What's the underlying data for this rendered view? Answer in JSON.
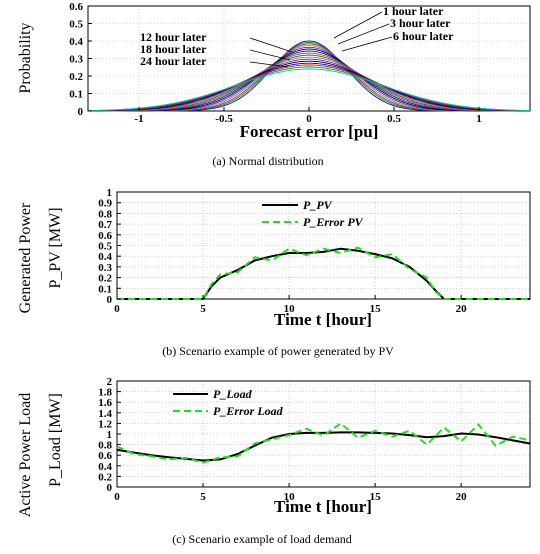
{
  "chart_data": [
    {
      "id": "a",
      "type": "line",
      "caption": "(a)  Normal distribution",
      "xlabel": "Forecast error [pu]",
      "ylabel": "Probability",
      "xlim": [
        -1.3,
        1.3
      ],
      "ylim": [
        0,
        0.6
      ],
      "xticks": [
        -1,
        -0.5,
        0,
        0.5,
        1
      ],
      "xtick_labels": [
        "-1",
        "-0.5",
        "0",
        "0.5",
        "1"
      ],
      "yticks": [
        0,
        0.1,
        0.2,
        0.3,
        0.4,
        0.5,
        0.6
      ],
      "ytick_labels": [
        "0",
        "0.1",
        "0.2",
        "0.3",
        "0.4",
        "0.5",
        "0.6"
      ],
      "series": [
        {
          "name": "1 hour later",
          "sigma": 0.1,
          "color": "#0000ff"
        },
        {
          "name": "",
          "sigma": 0.105,
          "color": "#00a000"
        },
        {
          "name": "3 hour later",
          "sigma": 0.11,
          "color": "#ff0000"
        },
        {
          "name": "",
          "sigma": 0.116,
          "color": "#00bfbf"
        },
        {
          "name": "",
          "sigma": 0.122,
          "color": "#bf00bf"
        },
        {
          "name": "6 hour later",
          "sigma": 0.128,
          "color": "#000000"
        },
        {
          "name": "",
          "sigma": 0.135,
          "color": "#0000ff"
        },
        {
          "name": "",
          "sigma": 0.142,
          "color": "#00a000"
        },
        {
          "name": "",
          "sigma": 0.149,
          "color": "#ff0000"
        },
        {
          "name": "",
          "sigma": 0.156,
          "color": "#00bfbf"
        },
        {
          "name": "12 hour later",
          "sigma": 0.163,
          "color": "#bf00bf"
        },
        {
          "name": "",
          "sigma": 0.17,
          "color": "#000000"
        },
        {
          "name": "",
          "sigma": 0.177,
          "color": "#0000ff"
        },
        {
          "name": "18 hour later",
          "sigma": 0.183,
          "color": "#ff0000"
        },
        {
          "name": "",
          "sigma": 0.19,
          "color": "#00a000"
        },
        {
          "name": "24 hour later",
          "sigma": 0.197,
          "color": "#00bfbf"
        }
      ],
      "annotations": [
        "1 hour later",
        "3 hour later",
        "6 hour later",
        "12 hour later",
        "18 hour later",
        "24 hour later"
      ]
    },
    {
      "id": "b",
      "type": "line",
      "caption": "(b)  Scenario example of power generated by PV",
      "xlabel": "Time t [hour]",
      "ylabel": "Generated Power",
      "ylabel2": "P_PV [MW]",
      "xlim": [
        0,
        24
      ],
      "ylim": [
        0,
        1
      ],
      "xticks": [
        0,
        5,
        10,
        15,
        20
      ],
      "xtick_labels": [
        "0",
        "5",
        "10",
        "15",
        "20"
      ],
      "yticks": [
        0,
        0.1,
        0.2,
        0.3,
        0.4,
        0.5,
        0.6,
        0.7,
        0.8,
        0.9,
        1
      ],
      "ytick_labels": [
        "0",
        "0.1",
        "0.2",
        "0.3",
        "0.4",
        "0.5",
        "0.6",
        "0.7",
        "0.8",
        "0.9",
        "1"
      ],
      "x": [
        0,
        1,
        2,
        3,
        4,
        5,
        5.5,
        6,
        7,
        8,
        9,
        10,
        11,
        12,
        13,
        14,
        15,
        16,
        17,
        18,
        18.5,
        19,
        20,
        21,
        22,
        23,
        24
      ],
      "series": [
        {
          "name": "P_PV",
          "color": "#000000",
          "dash": false,
          "values": [
            0,
            0,
            0,
            0,
            0,
            0,
            0.12,
            0.2,
            0.27,
            0.36,
            0.4,
            0.43,
            0.43,
            0.44,
            0.47,
            0.45,
            0.42,
            0.38,
            0.3,
            0.17,
            0.08,
            0,
            0,
            0,
            0,
            0,
            0
          ]
        },
        {
          "name": "P_Error PV",
          "color": "#22dd22",
          "dash": true,
          "values": [
            0,
            0,
            0,
            0,
            0,
            0,
            0.14,
            0.23,
            0.25,
            0.39,
            0.36,
            0.47,
            0.41,
            0.47,
            0.43,
            0.48,
            0.39,
            0.42,
            0.28,
            0.2,
            0.07,
            0,
            0,
            0,
            0,
            0,
            0
          ]
        }
      ]
    },
    {
      "id": "c",
      "type": "line",
      "caption": "(c)  Scenario example of load demand",
      "xlabel": "Time t [hour]",
      "ylabel": "Active Power Load",
      "ylabel2": "P_Load [MW]",
      "xlim": [
        0,
        24
      ],
      "ylim": [
        0,
        2
      ],
      "xticks": [
        0,
        5,
        10,
        15,
        20
      ],
      "xtick_labels": [
        "0",
        "5",
        "10",
        "15",
        "20"
      ],
      "yticks": [
        0,
        0.2,
        0.4,
        0.6,
        0.8,
        1,
        1.2,
        1.4,
        1.6,
        1.8,
        2
      ],
      "ytick_labels": [
        "0",
        "0.2",
        "0.4",
        "0.6",
        "0.8",
        "1",
        "1.2",
        "1.4",
        "1.6",
        "1.8",
        "2"
      ],
      "x": [
        0,
        1,
        2,
        3,
        4,
        5,
        6,
        7,
        8,
        9,
        10,
        11,
        12,
        13,
        14,
        15,
        16,
        17,
        18,
        19,
        20,
        21,
        22,
        23,
        24
      ],
      "series": [
        {
          "name": "P_Load",
          "color": "#000000",
          "dash": false,
          "values": [
            0.7,
            0.65,
            0.6,
            0.56,
            0.53,
            0.5,
            0.52,
            0.62,
            0.78,
            0.93,
            1.0,
            1.02,
            1.02,
            1.03,
            1.03,
            1.02,
            1.01,
            0.98,
            0.94,
            0.96,
            1.01,
            0.99,
            0.94,
            0.88,
            0.82
          ]
        },
        {
          "name": "P_Error Load",
          "color": "#22dd22",
          "dash": true,
          "values": [
            0.76,
            0.62,
            0.58,
            0.52,
            0.55,
            0.46,
            0.56,
            0.58,
            0.82,
            0.9,
            0.98,
            1.1,
            0.97,
            1.2,
            0.93,
            1.06,
            0.95,
            1.06,
            0.8,
            1.12,
            0.86,
            1.18,
            0.78,
            0.95,
            0.88
          ]
        }
      ]
    }
  ]
}
